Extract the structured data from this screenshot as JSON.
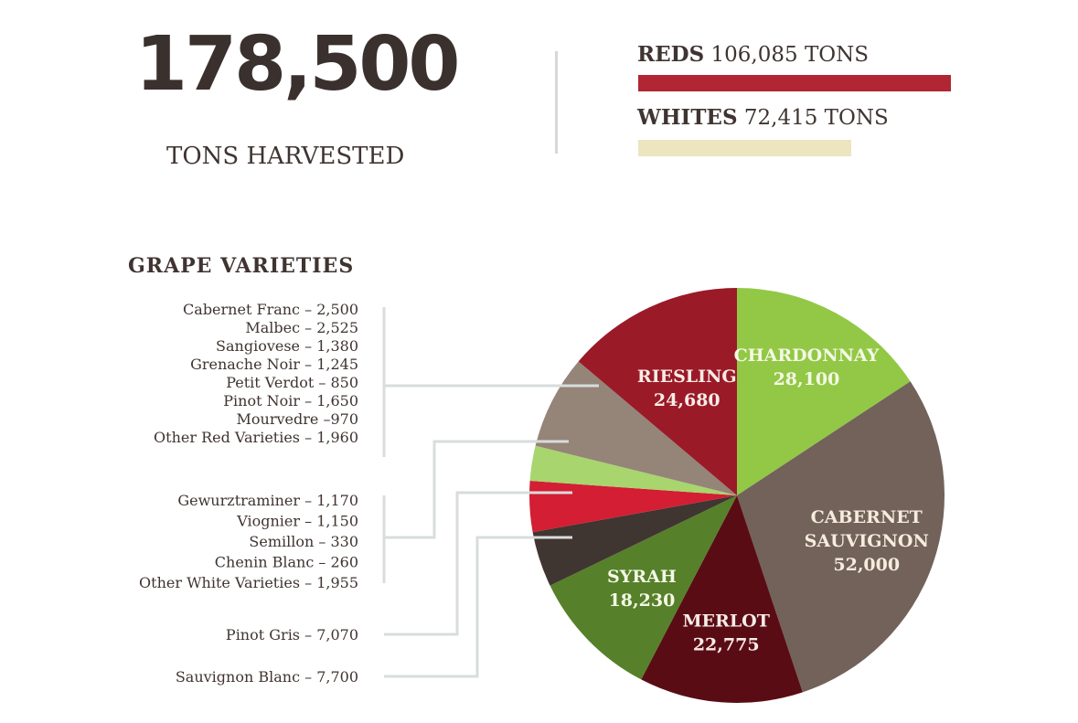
{
  "header": {
    "total_value": "178,500",
    "total_label": "TONS HARVESTED"
  },
  "bars": [
    {
      "name": "REDS",
      "value_text": "106,085 TONS",
      "tons": 106085,
      "color": "#b02733"
    },
    {
      "name": "WHITES",
      "value_text": "72,415 TONS",
      "tons": 72415,
      "color": "#ede4c0"
    }
  ],
  "colors": {
    "riesling": "#9a1a28",
    "chardonnay": "#92c845",
    "cabernet": "#72625a",
    "merlot": "#5a0c15",
    "syrah": "#56802a",
    "dark": "#3f3531",
    "red": "#d31e33",
    "lightgreen": "#a8d56e",
    "taupe": "#958478",
    "connector": "#d8dcdc"
  },
  "chart_data": {
    "type": "pie",
    "title": "GRAPE VARIETIES",
    "slices": [
      {
        "label": [
          "CHARDONNAY"
        ],
        "value": 28100,
        "value_text": "28,100",
        "color": "#92c845",
        "text_color": "#f4f8e6"
      },
      {
        "label": [
          "CABERNET",
          "SAUVIGNON"
        ],
        "value": 52000,
        "value_text": "52,000",
        "color": "#72625a",
        "text_color": "#f6ecdc"
      },
      {
        "label": [
          "MERLOT"
        ],
        "value": 22775,
        "value_text": "22,775",
        "color": "#5a0c15",
        "text_color": "#f7ece6"
      },
      {
        "label": [
          "SYRAH"
        ],
        "value": 18230,
        "value_text": "18,230",
        "color": "#56802a",
        "text_color": "#f4f8e6"
      },
      {
        "label": [],
        "value": 7700,
        "value_text": "",
        "color": "#3f3531",
        "text_color": "#ffffff"
      },
      {
        "label": [],
        "value": 7070,
        "value_text": "",
        "color": "#d31e33",
        "text_color": "#ffffff"
      },
      {
        "label": [],
        "value": 4865,
        "value_text": "",
        "color": "#a8d56e",
        "text_color": "#ffffff"
      },
      {
        "label": [],
        "value": 13080,
        "value_text": "",
        "color": "#958478",
        "text_color": "#ffffff"
      },
      {
        "label": [
          "RIESLING"
        ],
        "value": 24680,
        "value_text": "24,680",
        "color": "#9a1a28",
        "text_color": "#f7ece6"
      }
    ],
    "legend_groups": [
      {
        "name": "red-varieties",
        "items": [
          "Cabernet Franc – 2,500",
          "Malbec – 2,525",
          "Sangiovese – 1,380",
          "Grenache Noir – 1,245",
          "Petit Verdot – 850",
          "Pinot Noir – 1,650",
          "Mourvedre –970",
          "Other Red Varieties – 1,960"
        ]
      },
      {
        "name": "white-varieties",
        "items": [
          "Gewurztraminer – 1,170",
          "Viognier – 1,150",
          "Semillon – 330",
          "Chenin Blanc – 260",
          "Other White Varieties – 1,955"
        ]
      },
      {
        "name": "pinot-gris",
        "items": [
          "Pinot Gris – 7,070"
        ]
      },
      {
        "name": "sauvignon-blanc",
        "items": [
          "Sauvignon Blanc – 7,700"
        ]
      }
    ]
  }
}
